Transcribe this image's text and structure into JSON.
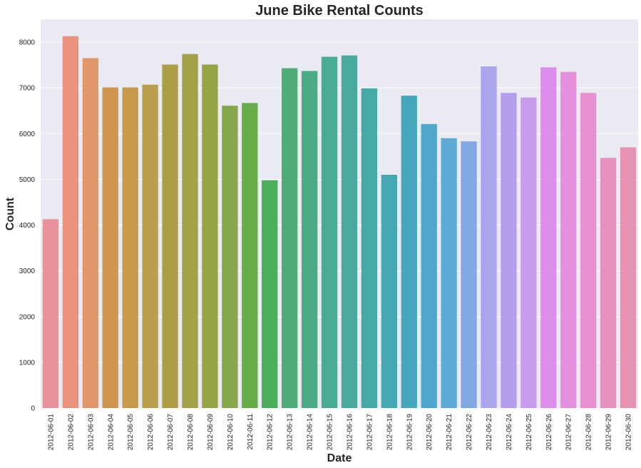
{
  "chart_data": {
    "type": "bar",
    "title": "June Bike Rental Counts",
    "xlabel": "Date",
    "ylabel": "Count",
    "ylim": [
      0,
      8500
    ],
    "yticks": [
      0,
      1000,
      2000,
      3000,
      4000,
      5000,
      6000,
      7000,
      8000
    ],
    "grid": true,
    "categories": [
      "2012-06-01",
      "2012-06-02",
      "2012-06-03",
      "2012-06-04",
      "2012-06-05",
      "2012-06-06",
      "2012-06-07",
      "2012-06-08",
      "2012-06-09",
      "2012-06-10",
      "2012-06-11",
      "2012-06-12",
      "2012-06-13",
      "2012-06-14",
      "2012-06-15",
      "2012-06-16",
      "2012-06-17",
      "2012-06-18",
      "2012-06-19",
      "2012-06-20",
      "2012-06-21",
      "2012-06-22",
      "2012-06-23",
      "2012-06-24",
      "2012-06-25",
      "2012-06-26",
      "2012-06-27",
      "2012-06-28",
      "2012-06-29",
      "2012-06-30"
    ],
    "values": [
      4130,
      8130,
      7650,
      7010,
      7010,
      7070,
      7510,
      7740,
      7510,
      6610,
      6670,
      4980,
      7430,
      7370,
      7680,
      7710,
      6990,
      5100,
      6830,
      6210,
      5900,
      5830,
      7470,
      6890,
      6790,
      7450,
      7350,
      6890,
      5470,
      5700
    ],
    "colors": [
      "#e8929b",
      "#e9937e",
      "#e19768",
      "#d2954e",
      "#c79b4b",
      "#b99f4a",
      "#ad9e46",
      "#a3a246",
      "#97a444",
      "#86a74a",
      "#66ad4a",
      "#4aae5c",
      "#4ead76",
      "#4aab84",
      "#48ab92",
      "#47aa9d",
      "#45aaa5",
      "#46a9b2",
      "#47a8bd",
      "#4fa8cb",
      "#5eaad7",
      "#82a9e3",
      "#aaa6ec",
      "#b49fed",
      "#c89ced",
      "#dd8eea",
      "#e590dd",
      "#e690cf",
      "#e690bd",
      "#e692b1"
    ],
    "background": "#eaeaf2"
  }
}
